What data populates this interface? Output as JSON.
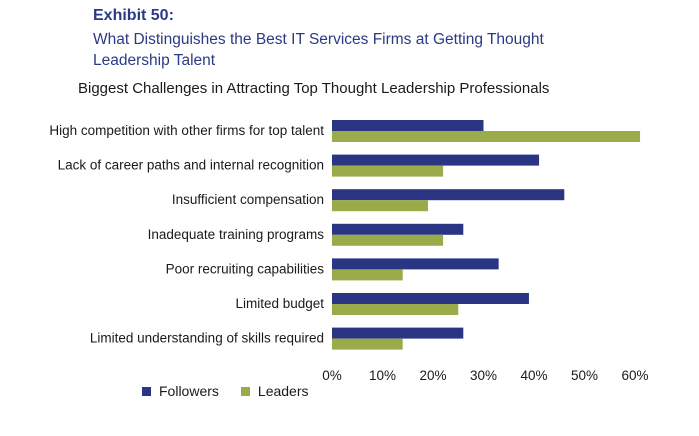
{
  "header": {
    "exhibit": "Exhibit 50:",
    "subtitle": "What Distinguishes the Best IT Services Firms at Getting Thought Leadership Talent"
  },
  "colors": {
    "followers": "#2a3584",
    "leaders": "#9aab4a"
  },
  "chart_data": {
    "type": "bar",
    "orientation": "horizontal",
    "title": "Biggest Challenges in Attracting Top Thought Leadership Professionals",
    "categories": [
      "High competition with other firms for top talent",
      "Lack of career paths and internal recognition",
      "Insufficient compensation",
      "Inadequate training programs",
      "Poor recruiting capabilities",
      "Limited budget",
      "Limited understanding of skills required"
    ],
    "series": [
      {
        "name": "Followers",
        "values": [
          30,
          41,
          46,
          26,
          33,
          39,
          26
        ]
      },
      {
        "name": "Leaders",
        "values": [
          61,
          22,
          19,
          22,
          14,
          25,
          14
        ]
      }
    ],
    "xlim": [
      0,
      60
    ],
    "xticks": [
      "0%",
      "10%",
      "20%",
      "30%",
      "40%",
      "50%",
      "60%"
    ],
    "legend_position": "bottom-left",
    "grid": false
  }
}
